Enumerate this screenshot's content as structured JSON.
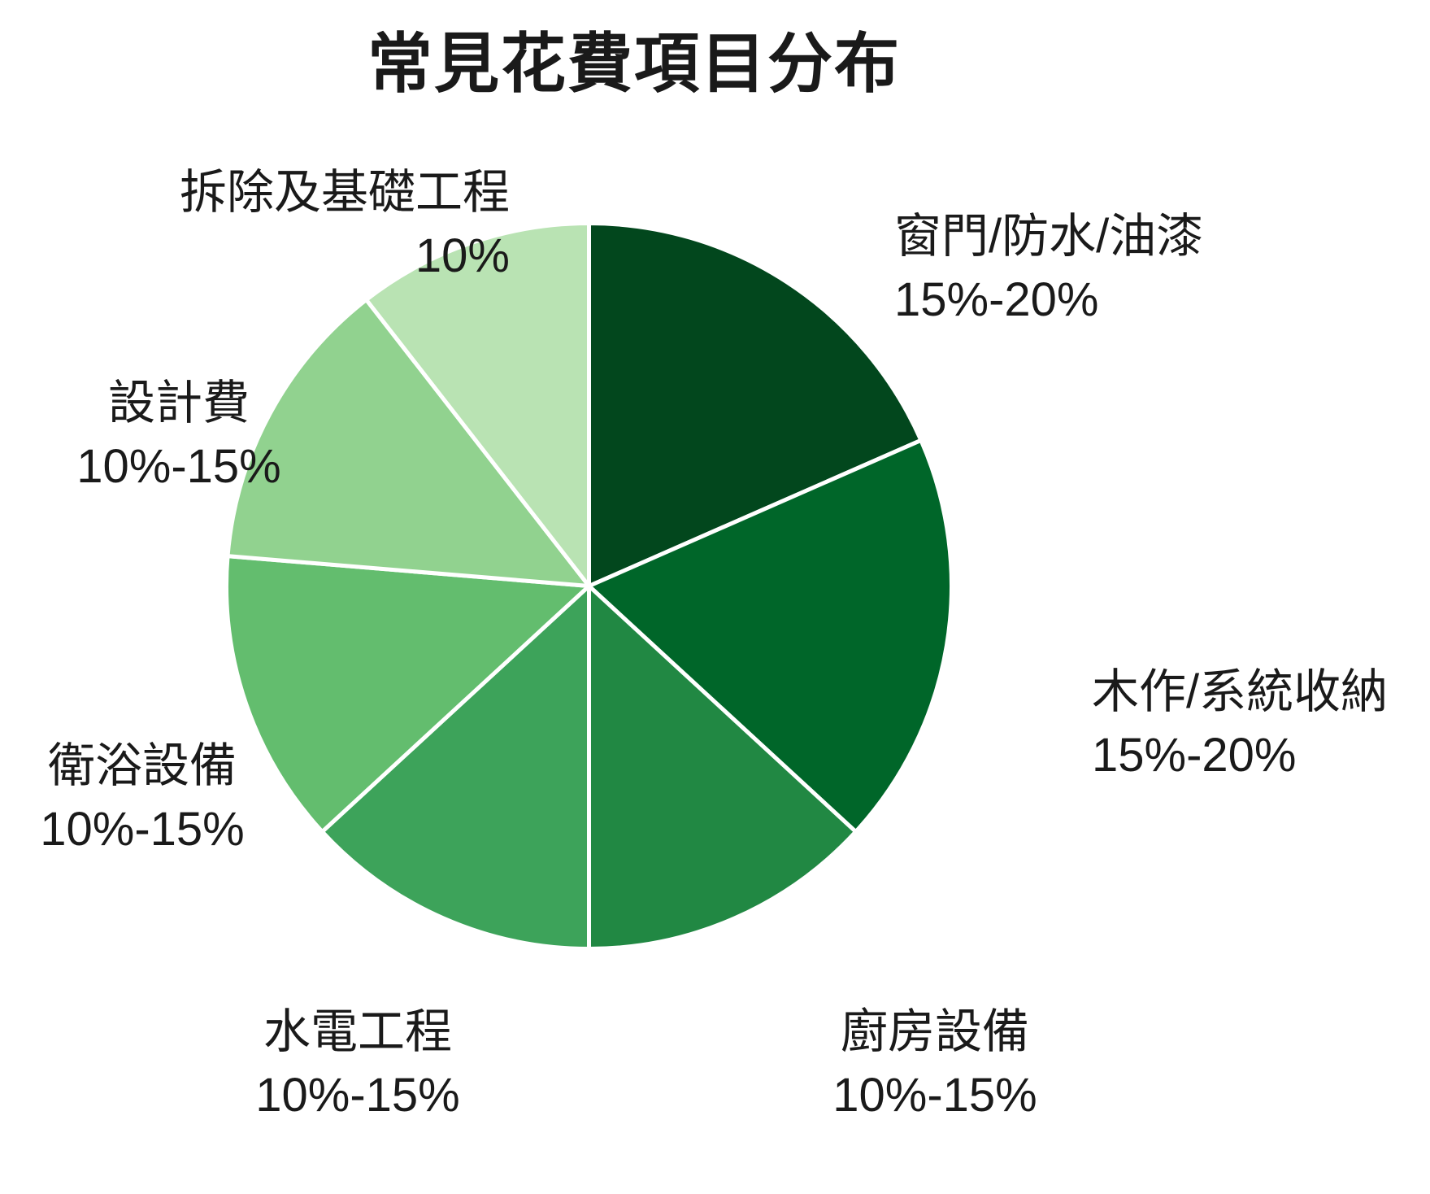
{
  "chart_data": {
    "type": "pie",
    "title": "常見花費項目分布",
    "direction": "clockwise",
    "start_angle_deg": 0,
    "stroke_color": "#ffffff",
    "legend": "none",
    "slices": [
      {
        "label": "窗門/防水/油漆",
        "value_label": "15%-20%",
        "value_range_pct": [
          15,
          20
        ],
        "weight": 17.5,
        "color": "#02471d"
      },
      {
        "label": "木作/系統收納",
        "value_label": "15%-20%",
        "value_range_pct": [
          15,
          20
        ],
        "weight": 17.5,
        "color": "#006629"
      },
      {
        "label": "廚房設備",
        "value_label": "10%-15%",
        "value_range_pct": [
          10,
          15
        ],
        "weight": 12.5,
        "color": "#218843"
      },
      {
        "label": "水電工程",
        "value_label": "10%-15%",
        "value_range_pct": [
          10,
          15
        ],
        "weight": 12.5,
        "color": "#3da35a"
      },
      {
        "label": "衛浴設備",
        "value_label": "10%-15%",
        "value_range_pct": [
          10,
          15
        ],
        "weight": 12.5,
        "color": "#63bd6e"
      },
      {
        "label": "設計費",
        "value_label": "10%-15%",
        "value_range_pct": [
          10,
          15
        ],
        "weight": 12.5,
        "color": "#91d28f"
      },
      {
        "label": "拆除及基礎工程",
        "value_label": "10%",
        "value_range_pct": [
          10,
          10
        ],
        "weight": 10,
        "color": "#b9e3b3"
      }
    ]
  }
}
